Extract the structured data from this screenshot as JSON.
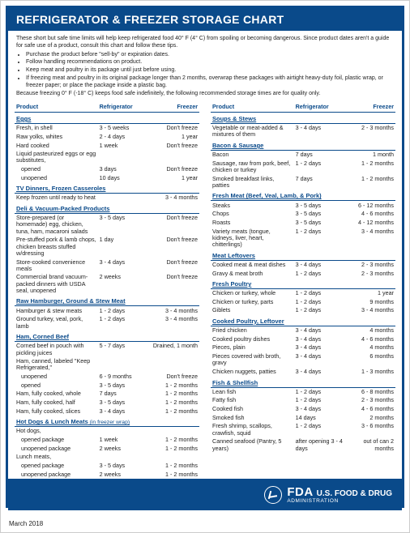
{
  "colors": {
    "brand": "#0a4a8a",
    "text": "#222222",
    "bg": "#ffffff"
  },
  "title": "REFRIGERATOR & FREEZER STORAGE CHART",
  "date": "March 2018",
  "intro": {
    "lead": "These short but safe time limits will help keep refrigerated food 40° F (4° C) from spoiling or becoming dangerous. Since product dates aren't a guide for safe use of a product, consult this chart and follow these tips.",
    "bullets": [
      "Purchase the product before \"sell-by\" or expiration dates.",
      "Follow handling recommendations on product.",
      "Keep meat and poultry in its package until just before using.",
      "If freezing meat and poultry in its original package longer than 2 months, overwrap these packages with airtight heavy-duty foil, plastic wrap, or freezer paper; or place the package inside a plastic bag."
    ],
    "tail": "Because freezing 0° F (-18° C) keeps food safe indefinitely, the following recommended storage times are for quality only."
  },
  "columns_header": {
    "product": "Product",
    "fridge": "Refrigerator",
    "freezer": "Freezer"
  },
  "left": [
    {
      "section": "Eggs"
    },
    {
      "p": "Fresh, in shell",
      "r": "3 - 5 weeks",
      "f": "Don't freeze"
    },
    {
      "p": "Raw yolks, whites",
      "r": "2 - 4 days",
      "f": "1 year"
    },
    {
      "p": "Hard cooked",
      "r": "1 week",
      "f": "Don't freeze"
    },
    {
      "p": "Liquid pasteurized eggs or egg substitutes,",
      "r": "",
      "f": ""
    },
    {
      "p": "opened",
      "indent": true,
      "r": "3 days",
      "f": "Don't freeze"
    },
    {
      "p": "unopened",
      "indent": true,
      "r": "10 days",
      "f": "1 year"
    },
    {
      "section": "TV Dinners, Frozen Casseroles"
    },
    {
      "p": "Keep frozen until ready to heat",
      "r": "",
      "f": "3 - 4 months"
    },
    {
      "section": "Deli & Vacuum-Packed Products"
    },
    {
      "p": "Store-prepared (or homemade) egg, chicken, tuna, ham, macaroni salads",
      "r": "3 - 5 days",
      "f": "Don't freeze"
    },
    {
      "p": "Pre-stuffed pork & lamb chops, chicken breasts stuffed w/dressing",
      "r": "1 day",
      "f": "Don't freeze"
    },
    {
      "p": "Store-cooked convenience meals",
      "r": "3 - 4 days",
      "f": "Don't freeze"
    },
    {
      "p": "Commercial brand vacuum-packed dinners with USDA seal, unopened",
      "r": "2 weeks",
      "f": "Don't freeze"
    },
    {
      "section": "Raw Hamburger, Ground & Stew Meat"
    },
    {
      "p": "Hamburger & stew meats",
      "r": "1 - 2 days",
      "f": "3 - 4 months"
    },
    {
      "p": "Ground turkey, veal, pork, lamb",
      "r": "1 - 2 days",
      "f": "3 - 4 months"
    },
    {
      "section": "Ham, Corned Beef"
    },
    {
      "p": "Corned beef in pouch with pickling juices",
      "r": "5 - 7 days",
      "f": "Drained, 1 month"
    },
    {
      "p": "Ham, canned, labeled \"Keep Refrigerated,\"",
      "r": "",
      "f": ""
    },
    {
      "p": "unopened",
      "indent": true,
      "r": "6 - 9 months",
      "f": "Don't freeze"
    },
    {
      "p": "opened",
      "indent": true,
      "r": "3 - 5 days",
      "f": "1 - 2 months"
    },
    {
      "p": "Ham, fully cooked, whole",
      "r": "7 days",
      "f": "1 - 2 months"
    },
    {
      "p": "Ham, fully cooked, half",
      "r": "3 - 5 days",
      "f": "1 - 2 months"
    },
    {
      "p": "Ham, fully cooked, slices",
      "r": "3 - 4 days",
      "f": "1 - 2 months"
    },
    {
      "section": "Hot Dogs & Lunch Meats",
      "note": "(in freezer wrap)"
    },
    {
      "p": "Hot dogs,",
      "r": "",
      "f": ""
    },
    {
      "p": "opened package",
      "indent": true,
      "r": "1 week",
      "f": "1 - 2 months"
    },
    {
      "p": "unopened package",
      "indent": true,
      "r": "2 weeks",
      "f": "1 - 2 months"
    },
    {
      "p": "Lunch meats,",
      "r": "",
      "f": ""
    },
    {
      "p": "opened package",
      "indent": true,
      "r": "3 - 5 days",
      "f": "1 - 2 months"
    },
    {
      "p": "unopened package",
      "indent": true,
      "r": "2 weeks",
      "f": "1 - 2 months"
    }
  ],
  "right": [
    {
      "section": "Soups & Stews"
    },
    {
      "p": "Vegetable or meat-added & mixtures of them",
      "r": "3 - 4 days",
      "f": "2 - 3 months"
    },
    {
      "section": "Bacon & Sausage"
    },
    {
      "p": "Bacon",
      "r": "7 days",
      "f": "1 month"
    },
    {
      "p": "Sausage, raw from pork, beef, chicken or turkey",
      "r": "1 - 2 days",
      "f": "1 - 2 months"
    },
    {
      "p": "Smoked breakfast links, patties",
      "r": "7 days",
      "f": "1 - 2 months"
    },
    {
      "section": "Fresh Meat (Beef, Veal, Lamb, & Pork)"
    },
    {
      "p": "Steaks",
      "r": "3 - 5 days",
      "f": "6 - 12 months"
    },
    {
      "p": "Chops",
      "r": "3 - 5 days",
      "f": "4 - 6 months"
    },
    {
      "p": "Roasts",
      "r": "3 - 5 days",
      "f": "4 - 12 months"
    },
    {
      "p": "Variety meats (tongue, kidneys, liver, heart, chitterlings)",
      "r": "1 - 2 days",
      "f": "3 - 4 months"
    },
    {
      "section": "Meat Leftovers"
    },
    {
      "p": "Cooked meat & meat dishes",
      "r": "3 - 4 days",
      "f": "2 - 3 months"
    },
    {
      "p": "Gravy & meat broth",
      "r": "1 - 2 days",
      "f": "2 - 3 months"
    },
    {
      "section": "Fresh Poultry"
    },
    {
      "p": "Chicken or turkey, whole",
      "r": "1 - 2 days",
      "f": "1 year"
    },
    {
      "p": "Chicken or turkey, parts",
      "r": "1 - 2 days",
      "f": "9 months"
    },
    {
      "p": "Giblets",
      "r": "1 - 2 days",
      "f": "3 - 4 months"
    },
    {
      "section": "Cooked Poultry, Leftover"
    },
    {
      "p": "Fried chicken",
      "r": "3 - 4 days",
      "f": "4 months"
    },
    {
      "p": "Cooked poultry dishes",
      "r": "3 - 4 days",
      "f": "4 - 6 months"
    },
    {
      "p": "Pieces, plain",
      "r": "3 - 4 days",
      "f": "4 months"
    },
    {
      "p": "Pieces covered with broth, gravy",
      "r": "3 - 4 days",
      "f": "6 months"
    },
    {
      "p": "Chicken nuggets, patties",
      "r": "3 - 4 days",
      "f": "1 - 3 months"
    },
    {
      "section": "Fish & Shellfish"
    },
    {
      "p": "Lean fish",
      "r": "1 - 2 days",
      "f": "6 - 8 months"
    },
    {
      "p": "Fatty fish",
      "r": "1 - 2 days",
      "f": "2 - 3 months"
    },
    {
      "p": "Cooked fish",
      "r": "3 - 4 days",
      "f": "4 - 6 months"
    },
    {
      "p": "Smoked fish",
      "r": "14 days",
      "f": "2 months"
    },
    {
      "p": "Fresh shrimp, scallops, crawfish, squid",
      "r": "1 - 2 days",
      "f": "3 - 6 months"
    },
    {
      "p": "Canned seafood (Pantry, 5 years)",
      "r": "after opening 3 - 4 days",
      "f": "out of can 2 months"
    }
  ],
  "footer": {
    "agency_abbrev": "FDA",
    "agency_name": "U.S. FOOD & DRUG",
    "agency_sub": "ADMINISTRATION"
  }
}
